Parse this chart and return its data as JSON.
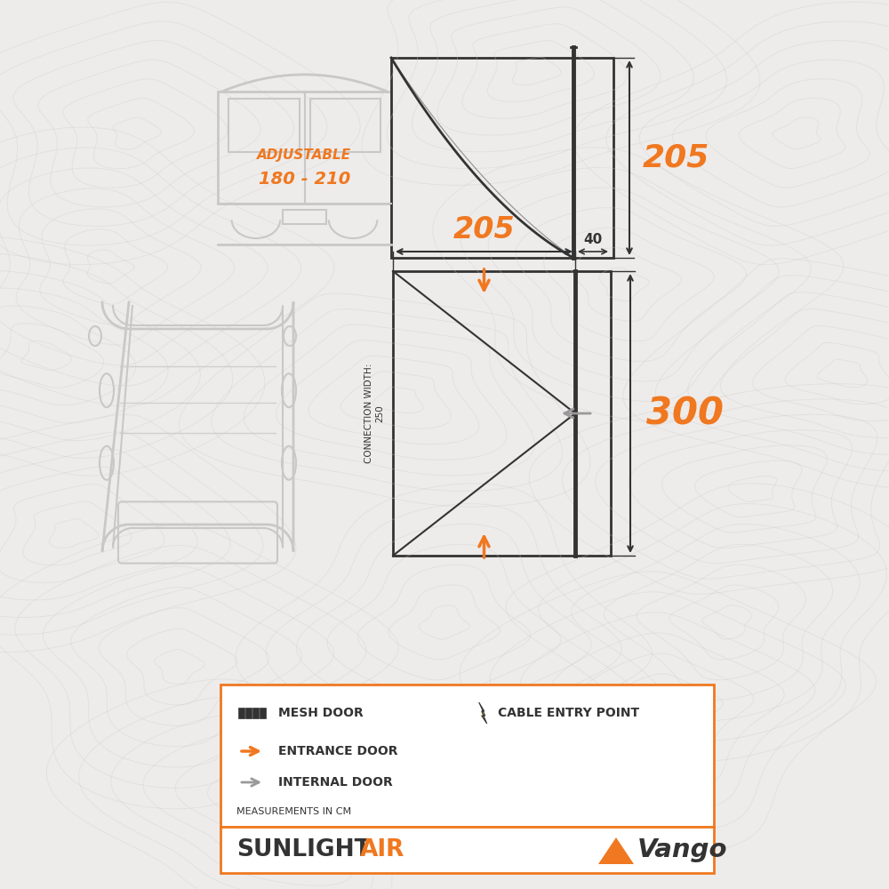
{
  "bg_color": "#eeeceb",
  "orange": "#f07820",
  "dark": "#333333",
  "gray": "#aaaaaa",
  "light_gray": "#c8c8c8",
  "title_product": "SUNLIGHT",
  "title_air": "AIR",
  "brand": "Vango",
  "dim_205_height": "205",
  "dim_205_width": "205",
  "dim_40": "40",
  "dim_300": "300",
  "legend_mesh": "MESH DOOR",
  "legend_entrance": "ENTRANCE DOOR",
  "legend_internal": "INTERNAL DOOR",
  "legend_measurements": "MEASUREMENTS IN CM",
  "legend_cable": "CABLE ENTRY POINT"
}
